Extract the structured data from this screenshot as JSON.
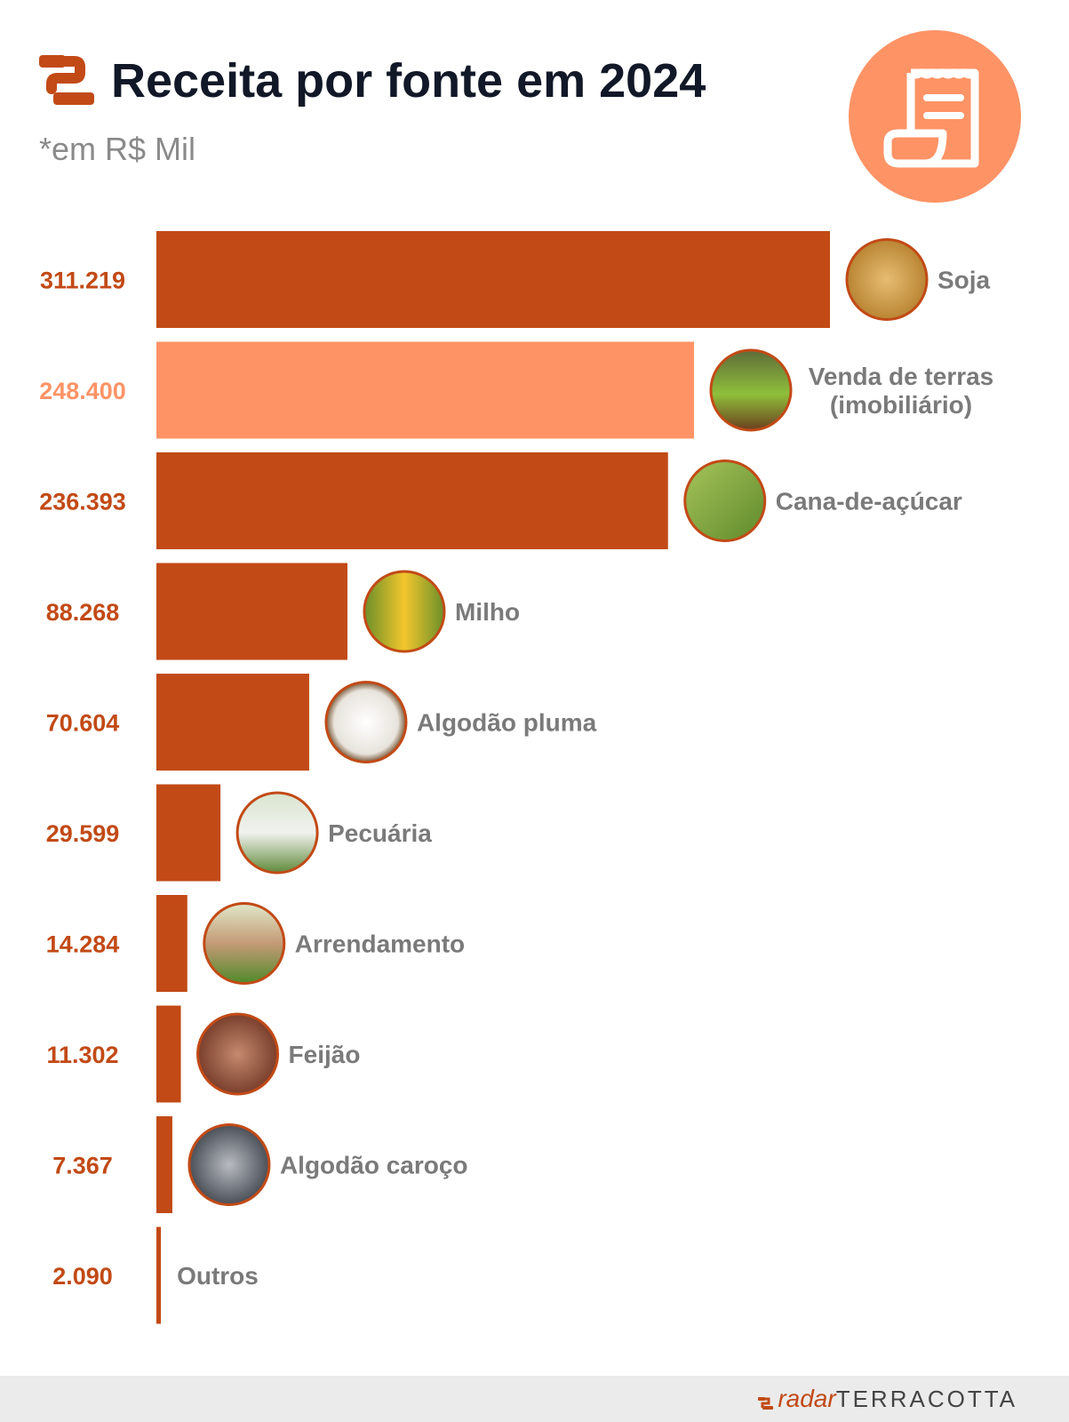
{
  "header": {
    "title": "Receita por fonte em 2024",
    "subtitle": "*em R$ Mil",
    "badge_icon": "receipt-icon",
    "logo_icon": "terracotta-logo-icon"
  },
  "footer": {
    "brand_radar": "radar",
    "brand_terracotta": "TERRACOTTA"
  },
  "colors": {
    "bar": "#c24a16",
    "highlight": "#fe9366",
    "label": "#7a7a7a",
    "title": "#111827"
  },
  "chart_data": {
    "type": "bar",
    "orientation": "horizontal",
    "categories": [
      "Soja",
      "Venda de terras (imobiliário)",
      "Cana-de-açúcar",
      "Milho",
      "Algodão pluma",
      "Pecuária",
      "Arrendamento",
      "Feijão",
      "Algodão caroço",
      "Outros"
    ],
    "values": [
      311.219,
      248.4,
      236.393,
      88.268,
      70.604,
      29.599,
      14.284,
      11.302,
      7.367,
      2.09
    ],
    "value_labels": [
      "311.219",
      "248.400",
      "236.393",
      "88.268",
      "70.604",
      "29.599",
      "14.284",
      "11.302",
      "7.367",
      "2.090"
    ],
    "label_lines": [
      [
        "Soja"
      ],
      [
        "Venda de terras",
        "(imobiliário)"
      ],
      [
        "Cana-de-açúcar"
      ],
      [
        "Milho"
      ],
      [
        "Algodão pluma"
      ],
      [
        "Pecuária"
      ],
      [
        "Arrendamento"
      ],
      [
        "Feijão"
      ],
      [
        "Algodão caroço"
      ],
      [
        "Outros"
      ]
    ],
    "thumbnails": [
      "soybeans-photo",
      "land-plot-photo",
      "sugarcane-photo",
      "corn-photo",
      "cotton-photo",
      "cattle-photo",
      "handshake-photo",
      "beans-photo",
      "cottonseed-photo",
      null
    ],
    "highlighted_index": 1,
    "title": "Receita por fonte em 2024",
    "unit": "*em R$ Mil",
    "xlim": [
      0,
      311.219
    ],
    "grid": false,
    "legend": "none"
  }
}
